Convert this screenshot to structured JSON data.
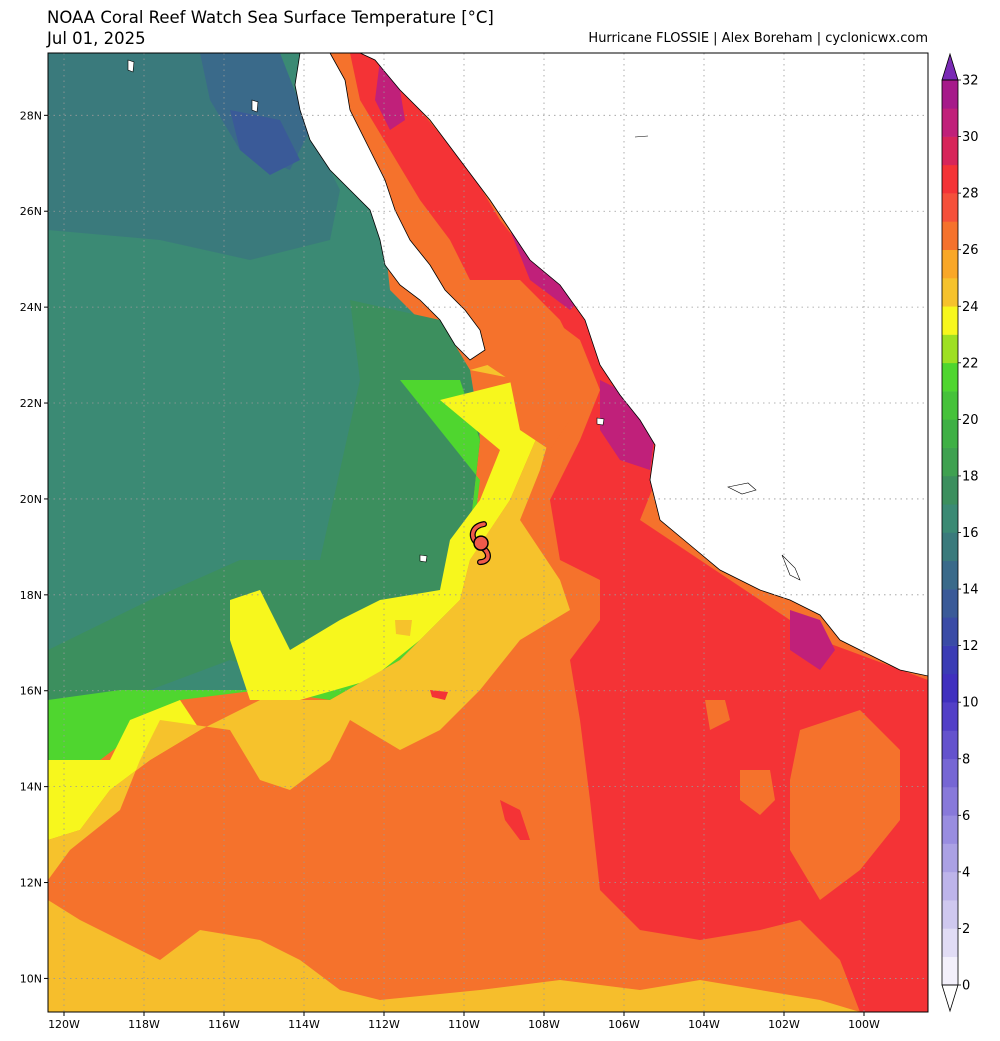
{
  "header": {
    "title": "NOAA Coral Reef Watch Sea Surface Temperature [°C]",
    "date": "Jul 01, 2025",
    "credit": "Hurricane FLOSSIE | Alex Boreham | cyclonicwx.com"
  },
  "map": {
    "lon_range": [
      -120.4,
      -98.4
    ],
    "lat_range": [
      9.3,
      29.3
    ],
    "lon_ticks": [
      -120,
      -118,
      -116,
      -114,
      -112,
      -110,
      -108,
      -106,
      -104,
      -102,
      -100
    ],
    "lat_ticks": [
      10,
      12,
      14,
      16,
      18,
      20,
      22,
      24,
      26,
      28
    ],
    "lon_tick_labels": [
      "120W",
      "118W",
      "116W",
      "114W",
      "112W",
      "110W",
      "108W",
      "106W",
      "104W",
      "102W",
      "100W"
    ],
    "lat_tick_labels": [
      "10N",
      "12N",
      "14N",
      "16N",
      "18N",
      "20N",
      "22N",
      "24N",
      "26N",
      "28N"
    ],
    "storm": {
      "name": "FLOSSIE",
      "lon": -109.5,
      "lat": 19.1,
      "symbol": "hurricane-icon"
    },
    "colors": {
      "land": "#ffffff",
      "coast": "#000000",
      "grid": "#9a9a9a"
    }
  },
  "colorbar": {
    "labels": [
      "0",
      "2",
      "4",
      "6",
      "8",
      "10",
      "12",
      "14",
      "16",
      "18",
      "20",
      "22",
      "24",
      "26",
      "28",
      "30",
      "32"
    ],
    "min": 0,
    "max": 32,
    "step": 1,
    "colors": [
      "#f3f0fb",
      "#e1dcf5",
      "#cfc8ef",
      "#bdb4ea",
      "#aba1e4",
      "#998de0",
      "#8879da",
      "#7666d4",
      "#6452cd",
      "#523fc7",
      "#4030bf",
      "#3b3cb5",
      "#3a4ba6",
      "#3a5a98",
      "#3a6a8a",
      "#3a7a7c",
      "#3b8a74",
      "#3c8f5e",
      "#3fa150",
      "#3fb045",
      "#46c23a",
      "#4fd62f",
      "#9ee022",
      "#f7f71d",
      "#f6c22c",
      "#f9a727",
      "#f5722c",
      "#f5503a",
      "#f43336",
      "#d7255a",
      "#c0207a",
      "#a61a8a"
    ],
    "under_color": "#ffffff",
    "over_color": "#7a2ab5"
  }
}
